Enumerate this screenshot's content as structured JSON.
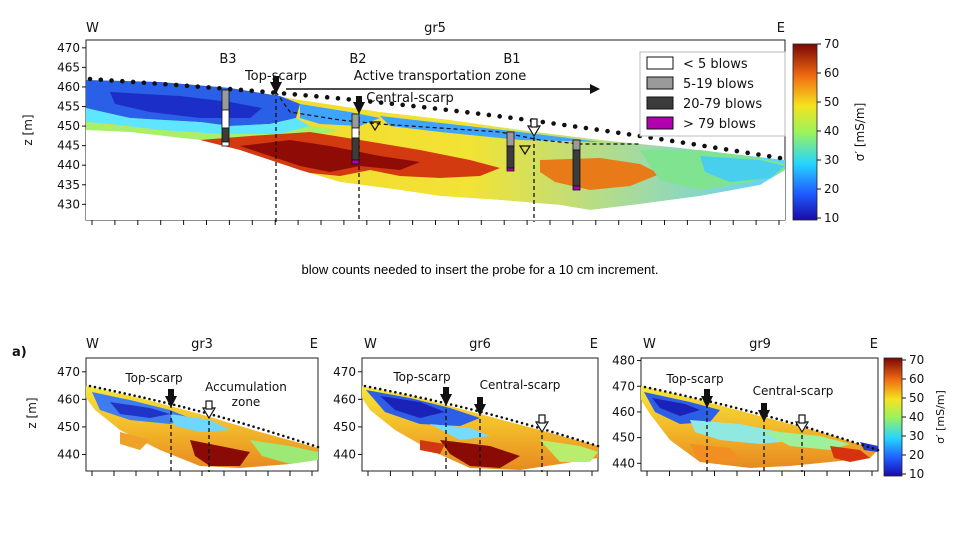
{
  "caption": "blow counts needed to insert the probe for a 10 cm increment.",
  "colorbar": {
    "label": "σ′ [mS/m]",
    "ticks": [
      10,
      20,
      30,
      40,
      50,
      60,
      70
    ]
  },
  "legend": {
    "entries": [
      {
        "label": "< 5 blows",
        "color": "#ffffff"
      },
      {
        "label": "5-19 blows",
        "color": "#9a9a9a"
      },
      {
        "label": "20-79 blows",
        "color": "#3c3c3c"
      },
      {
        "label": "> 79 blows",
        "color": "#b000b0"
      }
    ]
  },
  "panel_label": "a)",
  "chart_data": [
    {
      "type": "heatmap",
      "title": "gr5",
      "west_label": "W",
      "east_label": "E",
      "ylabel": "z [m]",
      "yticks": [
        470,
        465,
        460,
        455,
        450,
        445,
        440,
        435,
        430
      ],
      "ylim": [
        426,
        472
      ],
      "boreholes": [
        "B3",
        "B2",
        "B1"
      ],
      "annotations": [
        "Top-scarp",
        "Central-scarp",
        "Active transportation zone"
      ]
    },
    {
      "type": "heatmap",
      "title": "gr3",
      "west_label": "W",
      "east_label": "E",
      "ylabel": "z [m]",
      "yticks": [
        470,
        460,
        450,
        440
      ],
      "ylim": [
        434,
        475
      ],
      "annotations": [
        "Top-scarp",
        "Accumulation",
        "zone"
      ]
    },
    {
      "type": "heatmap",
      "title": "gr6",
      "west_label": "W",
      "east_label": "E",
      "ylabel": "",
      "yticks": [
        470,
        460,
        450,
        440
      ],
      "ylim": [
        434,
        475
      ],
      "annotations": [
        "Top-scarp",
        "Central-scarp"
      ]
    },
    {
      "type": "heatmap",
      "title": "gr9",
      "west_label": "W",
      "east_label": "E",
      "ylabel": "",
      "yticks": [
        480,
        470,
        460,
        450,
        440
      ],
      "ylim": [
        437,
        481
      ],
      "annotations": [
        "Top-scarp",
        "Central-scarp"
      ]
    }
  ]
}
